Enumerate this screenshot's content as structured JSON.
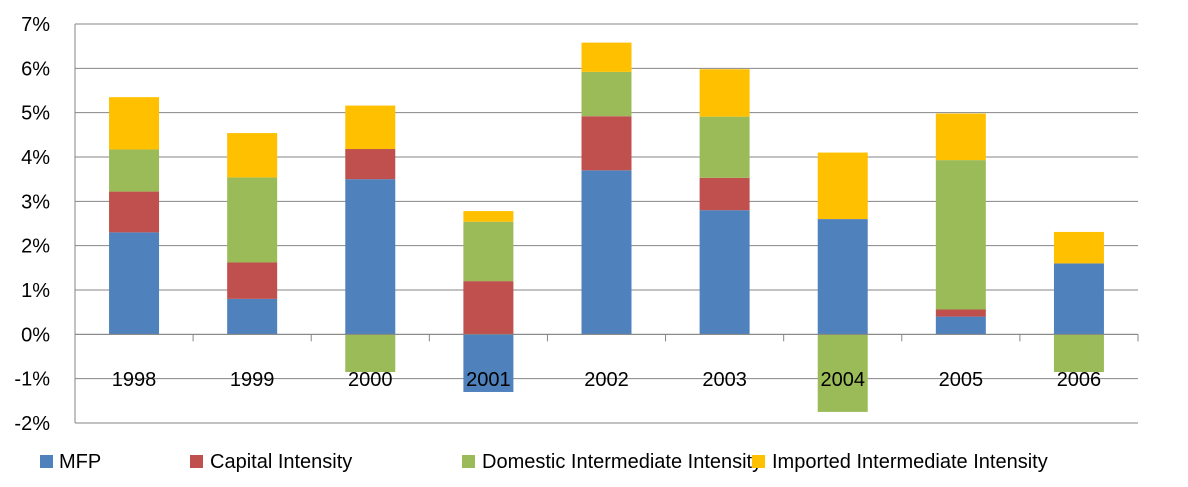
{
  "chart_data": {
    "type": "bar",
    "stacked": true,
    "title": "",
    "xlabel": "",
    "ylabel": "",
    "categories": [
      "1998",
      "1999",
      "2000",
      "2001",
      "2002",
      "2003",
      "2004",
      "2005",
      "2006"
    ],
    "ylim": [
      -0.02,
      0.07
    ],
    "yticks": [
      "7%",
      "6%",
      "5%",
      "4%",
      "3%",
      "2%",
      "1%",
      "0%",
      "-1%",
      "-2%"
    ],
    "grid": true,
    "legend_position": "bottom",
    "series": [
      {
        "name": "MFP",
        "color": "#4F81BD",
        "values": [
          0.023,
          0.008,
          0.035,
          -0.013,
          0.037,
          0.028,
          0.026,
          0.004,
          0.016
        ]
      },
      {
        "name": "Capital Intensity",
        "color": "#C0504D",
        "values": [
          0.0092,
          0.0082,
          0.0068,
          0.012,
          0.0122,
          0.0073,
          0.0,
          0.0016,
          0.0
        ]
      },
      {
        "name": "Domestic Intermediate Intensity",
        "color": "#9BBB59",
        "values": [
          0.0095,
          0.0192,
          -0.0085,
          0.0134,
          0.01,
          0.0138,
          -0.0175,
          0.0337,
          -0.0085
        ]
      },
      {
        "name": "Imported Intermediate Intensity",
        "color": "#FFC000",
        "values": [
          0.0118,
          0.01,
          0.0098,
          0.0024,
          0.0066,
          0.0107,
          0.015,
          0.0105,
          0.0071
        ]
      }
    ]
  }
}
